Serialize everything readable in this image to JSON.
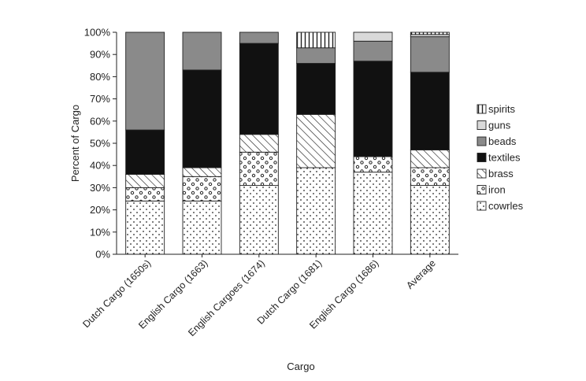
{
  "chart_data": {
    "type": "bar",
    "stacked": true,
    "title": "",
    "xlabel": "Cargo",
    "ylabel": "Percent of Cargo",
    "ylim": [
      0,
      100
    ],
    "yticks": [
      "0%",
      "10%",
      "20%",
      "30%",
      "40%",
      "50%",
      "60%",
      "70%",
      "80%",
      "90%",
      "100%"
    ],
    "grid": false,
    "legend_position": "right",
    "categories": [
      "Dutch Cargo (1650s)",
      "English Cargo (1663)",
      "English Cargoes (1674)",
      "Dutch Cargo (1681)",
      "English Cargo (1686)",
      "Average"
    ],
    "series": [
      {
        "name": "cowrles",
        "pattern": "dots",
        "values": [
          24,
          24,
          31,
          39,
          37,
          31
        ]
      },
      {
        "name": "iron",
        "pattern": "circles",
        "values": [
          6,
          11,
          15,
          0,
          7,
          8
        ]
      },
      {
        "name": "brass",
        "pattern": "hatch",
        "values": [
          6,
          4,
          8,
          24,
          0,
          8
        ]
      },
      {
        "name": "textiles",
        "pattern": "black",
        "values": [
          20,
          44,
          41,
          23,
          43,
          35
        ]
      },
      {
        "name": "beads",
        "pattern": "gray",
        "values": [
          44,
          17,
          5,
          7,
          9,
          16
        ]
      },
      {
        "name": "guns",
        "pattern": "light-gray",
        "values": [
          0,
          0,
          0,
          0,
          4,
          1
        ]
      },
      {
        "name": "spirits",
        "pattern": "vertical",
        "values": [
          0,
          0,
          0,
          7,
          0,
          1
        ]
      }
    ],
    "legend_order": [
      "spirits",
      "guns",
      "beads",
      "textiles",
      "brass",
      "iron",
      "cowrles"
    ]
  }
}
